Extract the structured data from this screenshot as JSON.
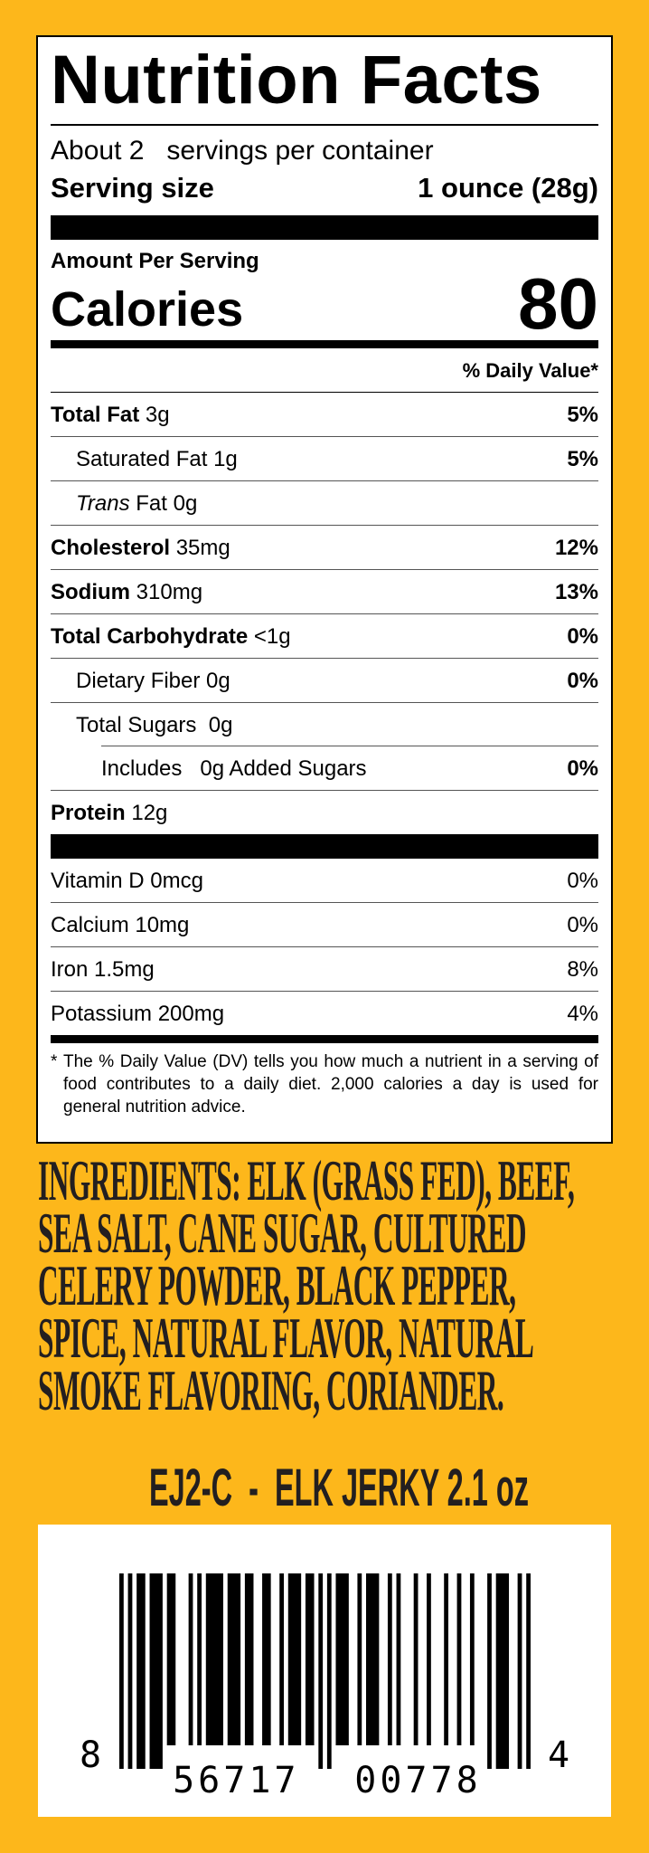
{
  "colors": {
    "background": "#FDB71B",
    "text": "#231F20"
  },
  "nutrition": {
    "title": "Nutrition Facts",
    "servings_per_container": "About 2   servings per container",
    "serving_size_label": "Serving size",
    "serving_size_value": "1 ounce (28g)",
    "amount_per_serving": "Amount Per Serving",
    "calories_label": "Calories",
    "calories_value": "80",
    "dv_header": "% Daily Value*",
    "rows": [
      {
        "name": "Total Fat",
        "amount": " 3g",
        "dv": "5%",
        "bold": true,
        "indent": 0
      },
      {
        "name": "Saturated Fat 1g",
        "amount": "",
        "dv": "5%",
        "bold": false,
        "indent": 1
      },
      {
        "name": "Trans",
        "amount": " Fat 0g",
        "dv": "",
        "bold": false,
        "indent": 1,
        "italic": true
      },
      {
        "name": "Cholesterol",
        "amount": " 35mg",
        "dv": "12%",
        "bold": true,
        "indent": 0
      },
      {
        "name": "Sodium",
        "amount": " 310mg",
        "dv": "13%",
        "bold": true,
        "indent": 0
      },
      {
        "name": "Total Carbohydrate",
        "amount": " <1g",
        "dv": "0%",
        "bold": true,
        "indent": 0
      },
      {
        "name": "Dietary Fiber 0g",
        "amount": "",
        "dv": "0%",
        "bold": false,
        "indent": 1
      },
      {
        "name": "Total Sugars  0g",
        "amount": "",
        "dv": "",
        "bold": false,
        "indent": 1
      },
      {
        "name": "Includes   0g Added Sugars",
        "amount": "",
        "dv": "0%",
        "bold": false,
        "indent": 2
      },
      {
        "name": "Protein",
        "amount": " 12g",
        "dv": "",
        "bold": true,
        "indent": 0
      }
    ],
    "vitamins": [
      {
        "name": "Vitamin D 0mcg",
        "dv": "0%"
      },
      {
        "name": "Calcium 10mg",
        "dv": "0%"
      },
      {
        "name": "Iron 1.5mg",
        "dv": "8%"
      },
      {
        "name": "Potassium 200mg",
        "dv": "4%"
      }
    ],
    "footnote_star": "*",
    "footnote": "The % Daily Value (DV) tells you how much a nutrient in a serving of food contributes to a daily diet. 2,000 calories a day is used for general nutrition advice."
  },
  "ingredients": {
    "lines": [
      "INGREDIENTS:  ELK (GRASS FED), BEEF,",
      "SEA SALT, CANE SUGAR, CULTURED",
      "CELERY POWDER, BLACK PEPPER,",
      "SPICE, NATURAL FLAVOR, NATURAL",
      "SMOKE FLAVORING, CORIANDER."
    ]
  },
  "product": {
    "sku_line": "EJ2-C  -  ELK JERKY 2.1 oz"
  },
  "barcode": {
    "type": "UPC-A",
    "number_system": "8",
    "left_digits": "56717",
    "right_digits": "00778",
    "check_digit": "4"
  }
}
